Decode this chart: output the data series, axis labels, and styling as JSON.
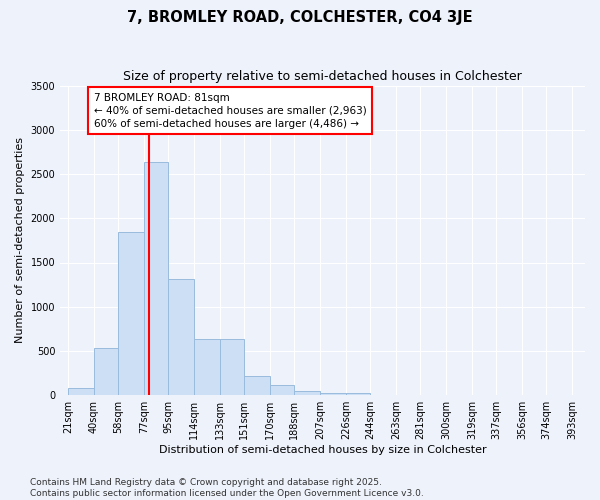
{
  "title": "7, BROMLEY ROAD, COLCHESTER, CO4 3JE",
  "subtitle": "Size of property relative to semi-detached houses in Colchester",
  "xlabel": "Distribution of semi-detached houses by size in Colchester",
  "ylabel": "Number of semi-detached properties",
  "bar_color": "#ccdff5",
  "bar_edge_color": "#99bbdd",
  "background_color": "#eef2fb",
  "grid_color": "#ffffff",
  "vline_color": "red",
  "vline_x": 81,
  "annotation_text": "7 BROMLEY ROAD: 81sqm\n← 40% of semi-detached houses are smaller (2,963)\n60% of semi-detached houses are larger (4,486) →",
  "footnote": "Contains HM Land Registry data © Crown copyright and database right 2025.\nContains public sector information licensed under the Open Government Licence v3.0.",
  "bin_labels": [
    "21sqm",
    "40sqm",
    "58sqm",
    "77sqm",
    "95sqm",
    "114sqm",
    "133sqm",
    "151sqm",
    "170sqm",
    "188sqm",
    "207sqm",
    "226sqm",
    "244sqm",
    "263sqm",
    "281sqm",
    "300sqm",
    "319sqm",
    "337sqm",
    "356sqm",
    "374sqm",
    "393sqm"
  ],
  "bin_edges": [
    21,
    40,
    58,
    77,
    95,
    114,
    133,
    151,
    170,
    188,
    207,
    226,
    244,
    263,
    281,
    300,
    319,
    337,
    356,
    374,
    393
  ],
  "bin_values": [
    80,
    530,
    1840,
    2640,
    1310,
    640,
    640,
    220,
    110,
    50,
    30,
    20,
    0,
    0,
    0,
    0,
    0,
    0,
    0,
    0
  ],
  "ylim": [
    0,
    3500
  ],
  "yticks": [
    0,
    500,
    1000,
    1500,
    2000,
    2500,
    3000,
    3500
  ],
  "title_fontsize": 10.5,
  "subtitle_fontsize": 9,
  "axis_fontsize": 8,
  "tick_fontsize": 7,
  "footnote_fontsize": 6.5
}
